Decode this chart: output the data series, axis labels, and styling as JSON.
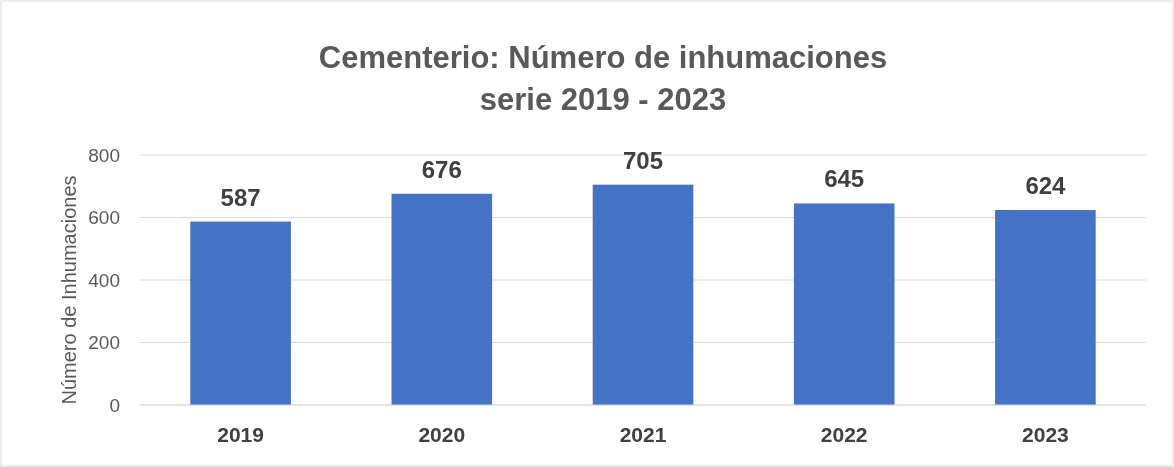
{
  "chart_data": {
    "type": "bar",
    "title": "Cementerio: Número de inhumaciones\nserie 2019 - 2023",
    "ylabel": "Número de Inhumaciones",
    "categories": [
      "2019",
      "2020",
      "2021",
      "2022",
      "2023"
    ],
    "values": [
      587,
      676,
      705,
      645,
      624
    ],
    "color": "#4472c4",
    "ylim": [
      0,
      800
    ],
    "yticks": [
      0,
      200,
      400,
      600,
      800
    ],
    "grid": "y",
    "data_labels": true
  }
}
